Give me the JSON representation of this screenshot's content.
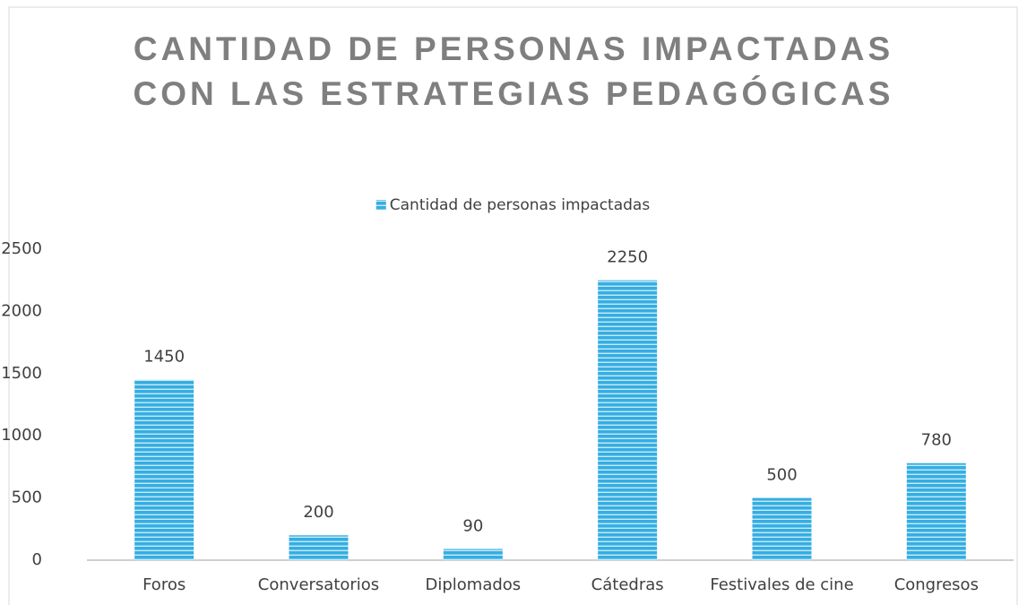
{
  "chart_data": {
    "type": "bar",
    "title": "CANTIDAD DE PERSONAS IMPACTADAS CON LAS ESTRATEGIAS PEDAGÓGICAS",
    "categories": [
      "Foros",
      "Conversatorios",
      "Diplomados",
      "Cátedras",
      "Festivales de cine",
      "Congresos"
    ],
    "series": [
      {
        "name": "Cantidad de personas impactadas",
        "color": "#35aee2",
        "values": [
          1450,
          200,
          90,
          2250,
          500,
          780
        ]
      }
    ],
    "ylim": [
      0,
      2500
    ],
    "yticks": [
      0,
      500,
      1000,
      1500,
      2000,
      2500
    ],
    "grid": false,
    "legend": "top"
  }
}
